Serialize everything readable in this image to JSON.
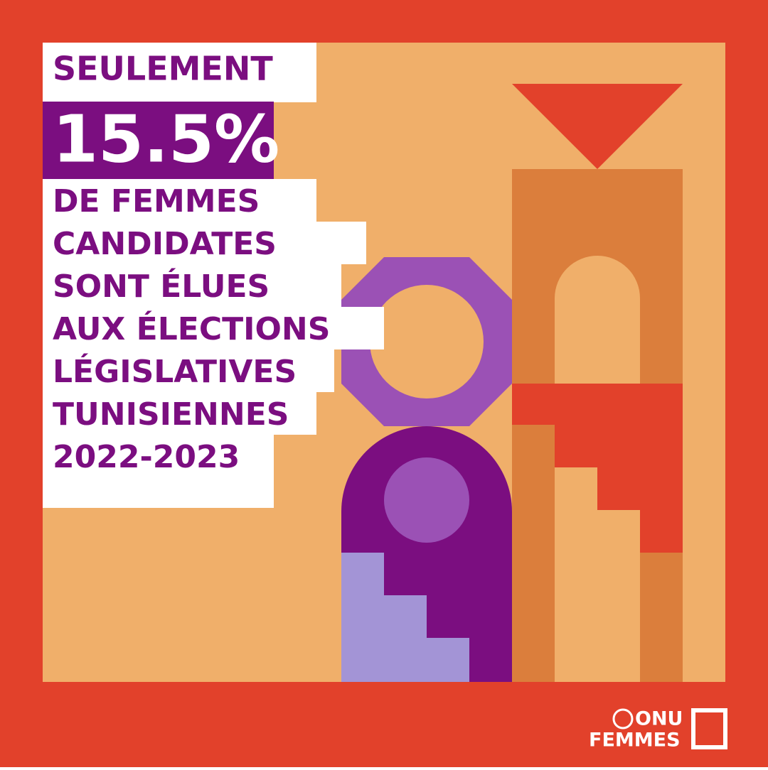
{
  "headline": {
    "intro": "SEULEMENT",
    "figure": "15.5%",
    "lines": [
      "DE FEMMES",
      "CANDIDATES",
      "SONT ÉLUES",
      "AUX ÉLECTIONS",
      "LÉGISLATIVES",
      "TUNISIENNES",
      "2022-2023"
    ]
  },
  "logo": {
    "line1": "ONU",
    "line2": "FEMMES"
  }
}
